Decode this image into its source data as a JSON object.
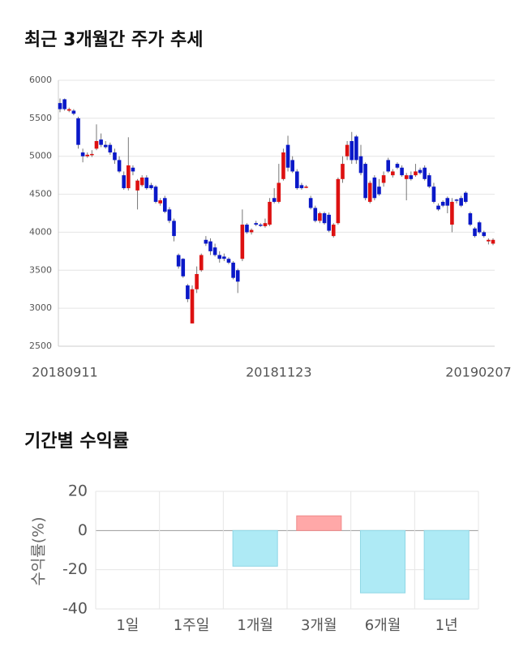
{
  "chart_data": [
    {
      "type": "candlestick",
      "title": "최근 3개월간 주가 추세",
      "categories": [
        "20180911",
        null,
        null,
        null,
        null,
        null,
        null,
        null,
        null,
        null,
        null,
        null,
        null,
        null,
        null,
        null,
        null,
        null,
        null,
        null,
        null,
        null,
        null,
        null,
        null,
        null,
        null,
        null,
        null,
        null,
        null,
        null,
        null,
        null,
        null,
        null,
        null,
        null,
        null,
        null,
        null,
        null,
        null,
        null,
        null,
        null,
        null,
        null,
        "20181123",
        null,
        null,
        null,
        null,
        null,
        null,
        null,
        null,
        null,
        null,
        null,
        null,
        null,
        null,
        null,
        null,
        null,
        null,
        null,
        null,
        null,
        null,
        null,
        null,
        null,
        null,
        null,
        null,
        null,
        null,
        null,
        null,
        null,
        null,
        null,
        null,
        null,
        null,
        null,
        null,
        null,
        null,
        null,
        null,
        null,
        null,
        "20190207"
      ],
      "open": [
        5700,
        5750,
        5600,
        5600,
        5500,
        5050,
        5000,
        5020,
        5100,
        5220,
        5150,
        5150,
        5050,
        4950,
        4750,
        4580,
        4850,
        4550,
        4620,
        4720,
        4620,
        4600,
        4380,
        4450,
        4300,
        4150,
        3700,
        3650,
        3300,
        2800,
        3250,
        3500,
        3900,
        3880,
        3800,
        3700,
        3680,
        3650,
        3600,
        3500,
        3650,
        4100,
        4000,
        4120,
        4100,
        4080,
        4100,
        4450,
        4400,
        4700,
        5150,
        4950,
        4800,
        4620,
        4600,
        4450,
        4320,
        4150,
        4250,
        4230,
        3950,
        4120,
        4700,
        5000,
        5200,
        5260,
        5000,
        4900,
        4400,
        4720,
        4600,
        4650,
        4950,
        4750,
        4900,
        4850,
        4700,
        4750,
        4750,
        4820,
        4850,
        4750,
        4600,
        4350,
        4400,
        4450,
        4100,
        4430,
        4450,
        4520,
        4250,
        4050,
        4130,
        4000,
        3880,
        3850
      ],
      "high": [
        5760,
        5760,
        5640,
        5620,
        5520,
        5100,
        5050,
        5080,
        5420,
        5300,
        5200,
        5180,
        5100,
        5000,
        4800,
        5250,
        4880,
        4700,
        4750,
        4750,
        4650,
        4620,
        4450,
        4480,
        4330,
        4180,
        3720,
        3660,
        3320,
        3300,
        3550,
        3720,
        3950,
        3920,
        3850,
        3750,
        3720,
        3670,
        3620,
        3520,
        4300,
        4120,
        4050,
        4150,
        4120,
        4180,
        4450,
        4580,
        4900,
        5100,
        5270,
        5000,
        4830,
        4650,
        4620,
        4480,
        4350,
        4270,
        4270,
        4260,
        4120,
        4720,
        5000,
        5200,
        5320,
        5280,
        5150,
        4920,
        4680,
        4750,
        4700,
        4800,
        4980,
        4830,
        4920,
        4880,
        4780,
        4800,
        4900,
        4850,
        4880,
        4780,
        4650,
        4380,
        4420,
        4470,
        4450,
        4440,
        4480,
        4540,
        4270,
        4070,
        4150,
        4020,
        3920,
        3920
      ],
      "low": [
        5580,
        5600,
        5580,
        5540,
        5100,
        4920,
        4980,
        4990,
        5080,
        5120,
        5100,
        5020,
        4900,
        4780,
        4560,
        4550,
        4750,
        4300,
        4600,
        4560,
        4560,
        4380,
        4350,
        4250,
        4120,
        3880,
        3520,
        3400,
        3080,
        2800,
        3200,
        3480,
        3820,
        3700,
        3680,
        3600,
        3620,
        3580,
        3380,
        3200,
        3620,
        3980,
        3970,
        4080,
        4070,
        4060,
        4080,
        4380,
        4380,
        4680,
        4800,
        4780,
        4560,
        4560,
        4580,
        4300,
        4130,
        4120,
        4100,
        4000,
        3930,
        4100,
        4650,
        4950,
        4900,
        4900,
        4750,
        4420,
        4380,
        4420,
        4480,
        4600,
        4780,
        4720,
        4830,
        4730,
        4420,
        4680,
        4730,
        4760,
        4680,
        4580,
        4380,
        4280,
        4330,
        4250,
        4000,
        4380,
        4330,
        4380,
        4080,
        3930,
        3980,
        3930,
        3840,
        3830
      ],
      "close": [
        5620,
        5620,
        5620,
        5560,
        5150,
        5000,
        5020,
        5030,
        5200,
        5150,
        5120,
        5050,
        4950,
        4800,
        4580,
        4880,
        4800,
        4680,
        4720,
        4580,
        4580,
        4400,
        4420,
        4270,
        4150,
        3950,
        3550,
        3420,
        3120,
        3250,
        3450,
        3700,
        3850,
        3750,
        3700,
        3650,
        3650,
        3600,
        3400,
        3350,
        4100,
        4000,
        4030,
        4100,
        4090,
        4120,
        4400,
        4400,
        4650,
        5050,
        4850,
        4800,
        4580,
        4580,
        4600,
        4320,
        4150,
        4250,
        4120,
        4020,
        4100,
        4700,
        4900,
        5150,
        4950,
        4950,
        4780,
        4450,
        4650,
        4450,
        4500,
        4750,
        4800,
        4800,
        4850,
        4750,
        4750,
        4700,
        4800,
        4780,
        4700,
        4600,
        4400,
        4300,
        4350,
        4350,
        4400,
        4420,
        4350,
        4400,
        4100,
        3950,
        4000,
        3950,
        3900,
        3900
      ],
      "up_color": "#dd1111",
      "down_color": "#0a18c8",
      "ylim": [
        2500,
        6000
      ],
      "yticks": [
        2500,
        3000,
        3500,
        4000,
        4500,
        5000,
        5500,
        6000
      ],
      "grid": true
    },
    {
      "type": "bar",
      "title": "기간별 수익률",
      "ylabel": "수익률(%)",
      "categories": [
        "1일",
        "1주일",
        "1개월",
        "3개월",
        "6개월",
        "1년"
      ],
      "values": [
        null,
        null,
        -18.2,
        7.5,
        -31.8,
        -35.1
      ],
      "up_color": "#ffa8a8",
      "down_color": "#aeeaf5",
      "ylim": [
        -40,
        20
      ],
      "yticks": [
        -40,
        -20,
        0,
        20
      ],
      "grid": true
    }
  ]
}
